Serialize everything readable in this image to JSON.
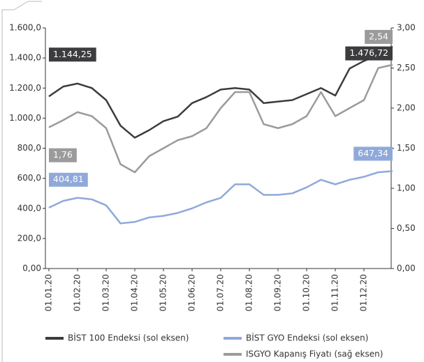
{
  "chart_data": {
    "type": "line",
    "categories": [
      "01.01.20",
      null,
      "01.02.20",
      null,
      "01.03.20",
      null,
      "01.04.20",
      null,
      "01.05.20",
      null,
      "01.06.20",
      null,
      "01.07.20",
      null,
      "01.08.20",
      null,
      "01.09.20",
      null,
      "01.10.20",
      null,
      "01.11.20",
      null,
      "01.12.20",
      null,
      null
    ],
    "ylim": [
      0,
      1600
    ],
    "yticks": [
      {
        "value": 0,
        "label": "0,00"
      },
      {
        "value": 200,
        "label": "200,0"
      },
      {
        "value": 400,
        "label": "400,0"
      },
      {
        "value": 600,
        "label": "600,0"
      },
      {
        "value": 800,
        "label": "800,0"
      },
      {
        "value": 1000,
        "label": "1.000,0"
      },
      {
        "value": 1200,
        "label": "1.200,0"
      },
      {
        "value": 1400,
        "label": "1.400,0"
      },
      {
        "value": 1600,
        "label": "1.600,0"
      }
    ],
    "y2lim": [
      0,
      3
    ],
    "y2ticks": [
      {
        "value": 0,
        "label": "0,00"
      },
      {
        "value": 0.5,
        "label": "0,50"
      },
      {
        "value": 1,
        "label": "1,00"
      },
      {
        "value": 1.5,
        "label": "1,50"
      },
      {
        "value": 2,
        "label": "2,00"
      },
      {
        "value": 2.5,
        "label": "2,50"
      },
      {
        "value": 3,
        "label": "3,00"
      }
    ],
    "legend": "bottom",
    "series": [
      {
        "name": "BİST 100 Endeksi (sol eksen)",
        "color": "#3c3c3f",
        "values": [
          1144.25,
          1210,
          1230,
          1200,
          1120,
          950,
          870,
          920,
          980,
          1010,
          1100,
          1140,
          1190,
          1200,
          1190,
          1100,
          1110,
          1120,
          1160,
          1200,
          1150,
          1330,
          1380,
          1420,
          1476.72
        ],
        "value_labels": [
          "1.144,25",
          null,
          null,
          null,
          null,
          null,
          null,
          null,
          null,
          null,
          null,
          null,
          null,
          null,
          null,
          null,
          null,
          null,
          null,
          null,
          null,
          null,
          null,
          null,
          "1.476,72"
        ]
      },
      {
        "name": "BİST GYO Endeksi (sol eksen)",
        "color": "#8fa9d9",
        "values": [
          404.81,
          450,
          470,
          460,
          420,
          300,
          310,
          340,
          350,
          370,
          400,
          440,
          470,
          560,
          560,
          490,
          490,
          500,
          540,
          590,
          560,
          590,
          610,
          640,
          647.34
        ],
        "value_labels": [
          "404,81",
          null,
          null,
          null,
          null,
          null,
          null,
          null,
          null,
          null,
          null,
          null,
          null,
          null,
          null,
          null,
          null,
          null,
          null,
          null,
          null,
          null,
          null,
          null,
          "647,34"
        ]
      },
      {
        "name": "ISGYO Kapanış Fiyatı (sağ eksen)",
        "color": "#9b9b9b",
        "axis": "y2",
        "values": [
          1.76,
          1.85,
          1.95,
          1.9,
          1.75,
          1.3,
          1.2,
          1.4,
          1.5,
          1.6,
          1.65,
          1.75,
          2.0,
          2.2,
          2.2,
          1.8,
          1.75,
          1.8,
          1.9,
          2.2,
          1.9,
          2.0,
          2.1,
          2.5,
          2.54
        ],
        "value_labels": [
          "1,76",
          null,
          null,
          null,
          null,
          null,
          null,
          null,
          null,
          null,
          null,
          null,
          null,
          null,
          null,
          null,
          null,
          null,
          null,
          null,
          null,
          null,
          null,
          null,
          "2,54"
        ]
      }
    ]
  }
}
